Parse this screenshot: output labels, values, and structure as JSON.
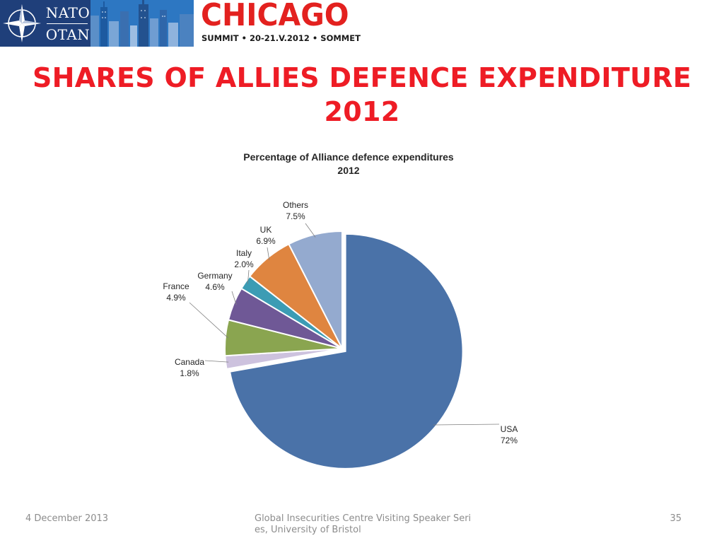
{
  "header": {
    "nato_top": "NATO",
    "nato_bottom": "OTAN",
    "city": "CHICAGO",
    "summit_line": "SUMMIT • 20-21.V.2012 • SOMMET",
    "colors": {
      "nato_blue": "#1f3f7a",
      "chicago_red": "#e3211f"
    }
  },
  "slide": {
    "title": "SHARES OF ALLIES DEFENCE EXPENDITURE 2012",
    "title_color": "#ee1c25"
  },
  "chart_data": {
    "type": "pie",
    "title": "Percentage of Alliance defence expenditures",
    "subtitle": "2012",
    "slices": [
      {
        "label": "USA",
        "display": "72%",
        "value": 72,
        "color": "#4a72a8",
        "exploded": true
      },
      {
        "label": "Canada",
        "display": "1.8%",
        "value": 1.8,
        "color": "#cdc2de"
      },
      {
        "label": "France",
        "display": "4.9%",
        "value": 4.9,
        "color": "#8aa550"
      },
      {
        "label": "Germany",
        "display": "4.6%",
        "value": 4.6,
        "color": "#6f5896"
      },
      {
        "label": "Italy",
        "display": "2.0%",
        "value": 2.0,
        "color": "#3c9cb4"
      },
      {
        "label": "UK",
        "display": "6.9%",
        "value": 6.9,
        "color": "#df8540"
      },
      {
        "label": "Others",
        "display": "7.5%",
        "value": 7.5,
        "color": "#94aacf"
      }
    ],
    "legend": "none",
    "label_style": "outside with leader lines"
  },
  "footer": {
    "date": "4 December 2013",
    "event": "Global Insecurities Centre Visiting Speaker Series, University of Bristol",
    "page": "35"
  }
}
